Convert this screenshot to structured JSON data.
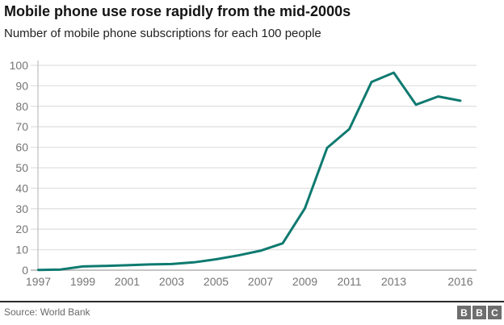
{
  "header": {
    "title": "Mobile phone use rose rapidly from the mid-2000s",
    "subtitle": "Number of mobile phone subscriptions for each 100 people"
  },
  "footer": {
    "source": "Source: World Bank",
    "logo_blocks": [
      "B",
      "B",
      "C"
    ]
  },
  "colors": {
    "line": "#0e7a70",
    "gridline": "#e1e1e1",
    "axis_line": "#c3c3c3",
    "baseline": "#b0b0b0",
    "tick_label": "#757575",
    "title_text": "#141414",
    "source_text": "#696969",
    "logo_block_bg": "#6e6e6e"
  },
  "chart_data": {
    "type": "line",
    "title": "Mobile phone use rose rapidly from the mid-2000s",
    "subtitle": "Number of mobile phone subscriptions for each 100 people",
    "xlabel": "",
    "ylabel": "",
    "x": [
      1997,
      1998,
      1999,
      2000,
      2001,
      2002,
      2003,
      2004,
      2005,
      2006,
      2007,
      2008,
      2009,
      2010,
      2011,
      2012,
      2013,
      2014,
      2015,
      2016
    ],
    "series": [
      {
        "name": "Mobile phone subscriptions per 100 people",
        "values": [
          0.1,
          0.3,
          1.8,
          2.1,
          2.4,
          2.8,
          3.0,
          3.8,
          5.3,
          7.2,
          9.5,
          13.1,
          30.2,
          59.7,
          68.9,
          91.9,
          96.4,
          80.8,
          84.8,
          82.7
        ]
      }
    ],
    "xlim": [
      1997,
      2016.7
    ],
    "ylim": [
      0,
      100
    ],
    "yticks": [
      0,
      10,
      20,
      30,
      40,
      50,
      60,
      70,
      80,
      90,
      100
    ],
    "xticks": [
      1997,
      1999,
      2001,
      2003,
      2005,
      2007,
      2009,
      2011,
      2013,
      2016
    ],
    "grid": true,
    "legend": "none"
  }
}
